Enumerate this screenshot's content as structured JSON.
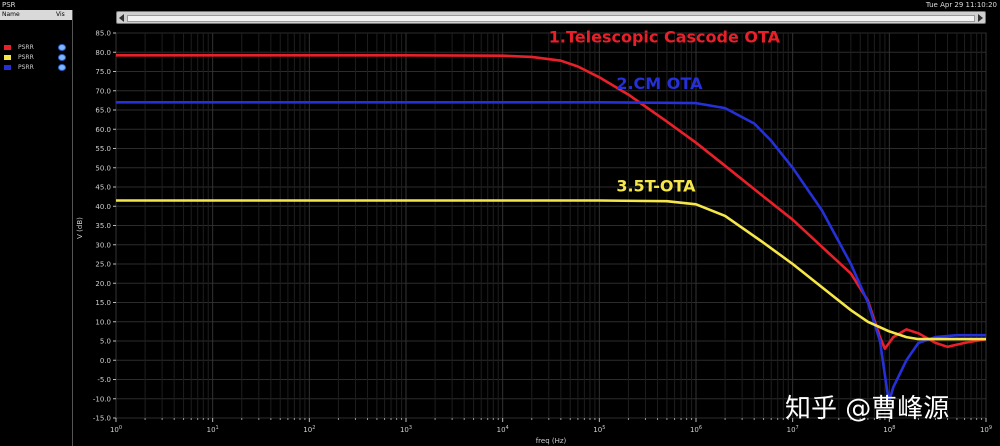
{
  "app": {
    "title": "PSR",
    "timestamp": "Tue Apr 29 11:10:20"
  },
  "legend_panel": {
    "col_name": "Name",
    "col_vis": "Vis",
    "items": [
      {
        "label": "PSRR",
        "color": "#e8202a"
      },
      {
        "label": "PSRR",
        "color": "#f5e64a"
      },
      {
        "label": "PSRR",
        "color": "#2530d8"
      }
    ]
  },
  "watermark": "知乎 @曹峰源",
  "chart_data": {
    "type": "line",
    "xlabel": "freq (Hz)",
    "ylabel": "V (dB)",
    "xscale": "log",
    "xlim": [
      1,
      1000000000.0
    ],
    "ylim": [
      -15,
      85
    ],
    "grid": true,
    "x_ticks": [
      {
        "v": 1,
        "b": "10",
        "e": "0"
      },
      {
        "v": 10,
        "b": "10",
        "e": "1"
      },
      {
        "v": 100,
        "b": "10",
        "e": "2"
      },
      {
        "v": 1000,
        "b": "10",
        "e": "3"
      },
      {
        "v": 10000,
        "b": "10",
        "e": "4"
      },
      {
        "v": 100000,
        "b": "10",
        "e": "5"
      },
      {
        "v": 1000000,
        "b": "10",
        "e": "6"
      },
      {
        "v": 10000000,
        "b": "10",
        "e": "7"
      },
      {
        "v": 100000000,
        "b": "10",
        "e": "8"
      },
      {
        "v": 1000000000,
        "b": "10",
        "e": "9"
      }
    ],
    "y_ticks": [
      "85.0",
      "80.0",
      "75.0",
      "70.0",
      "65.0",
      "60.0",
      "55.0",
      "50.0",
      "45.0",
      "40.0",
      "35.0",
      "30.0",
      "25.0",
      "20.0",
      "15.0",
      "10.0",
      "5.0",
      "0.0",
      "-5.0",
      "-10.0",
      "-15.0"
    ],
    "series": [
      {
        "name": "PSRR",
        "color": "#e8202a",
        "annotation": "1.Telescopic Cascode OTA",
        "anno_x": 30000,
        "anno_y": 82.5,
        "points": [
          [
            1,
            79.2
          ],
          [
            10,
            79.2
          ],
          [
            100,
            79.2
          ],
          [
            1000,
            79.2
          ],
          [
            10000,
            79.1
          ],
          [
            20000,
            78.8
          ],
          [
            40000,
            77.8
          ],
          [
            60000,
            76.3
          ],
          [
            100000,
            73.5
          ],
          [
            200000,
            69.0
          ],
          [
            500000,
            62.0
          ],
          [
            1000000,
            56.5
          ],
          [
            2000000,
            50.5
          ],
          [
            5000000,
            42.5
          ],
          [
            10000000,
            36.5
          ],
          [
            20000000,
            29.5
          ],
          [
            40000000,
            22.5
          ],
          [
            60000000,
            15.5
          ],
          [
            80000000,
            6.0
          ],
          [
            90000000,
            3.0
          ],
          [
            110000000,
            6.0
          ],
          [
            150000000,
            8.0
          ],
          [
            200000000,
            7.0
          ],
          [
            300000000,
            4.5
          ],
          [
            400000000,
            3.5
          ],
          [
            600000000,
            4.5
          ],
          [
            1000000000,
            5.5
          ]
        ]
      },
      {
        "name": "PSRR",
        "color": "#2530d8",
        "annotation": "2.CM OTA",
        "anno_x": 150000,
        "anno_y": 70.5,
        "points": [
          [
            1,
            67.0
          ],
          [
            100,
            67.0
          ],
          [
            10000,
            67.0
          ],
          [
            100000,
            67.0
          ],
          [
            1000000,
            66.8
          ],
          [
            2000000,
            65.5
          ],
          [
            4000000,
            61.5
          ],
          [
            6000000,
            57.0
          ],
          [
            10000000,
            50.0
          ],
          [
            20000000,
            39.0
          ],
          [
            40000000,
            25.0
          ],
          [
            60000000,
            15.0
          ],
          [
            80000000,
            5.0
          ],
          [
            95000000,
            -8.0
          ],
          [
            100000000,
            -10.5
          ],
          [
            110000000,
            -7.0
          ],
          [
            150000000,
            0.0
          ],
          [
            200000000,
            4.5
          ],
          [
            300000000,
            6.0
          ],
          [
            500000000,
            6.5
          ],
          [
            1000000000,
            6.5
          ]
        ]
      },
      {
        "name": "PSRR",
        "color": "#f5e64a",
        "annotation": "3.5T-OTA",
        "anno_x": 150000,
        "anno_y": 43.8,
        "points": [
          [
            1,
            41.5
          ],
          [
            100,
            41.5
          ],
          [
            10000,
            41.5
          ],
          [
            100000,
            41.5
          ],
          [
            500000,
            41.3
          ],
          [
            1000000,
            40.5
          ],
          [
            2000000,
            37.5
          ],
          [
            5000000,
            30.5
          ],
          [
            10000000,
            25.0
          ],
          [
            20000000,
            19.0
          ],
          [
            40000000,
            13.0
          ],
          [
            60000000,
            10.0
          ],
          [
            100000000,
            7.5
          ],
          [
            150000000,
            6.0
          ],
          [
            200000000,
            5.5
          ],
          [
            500000000,
            5.5
          ],
          [
            1000000000,
            5.5
          ]
        ]
      }
    ]
  }
}
